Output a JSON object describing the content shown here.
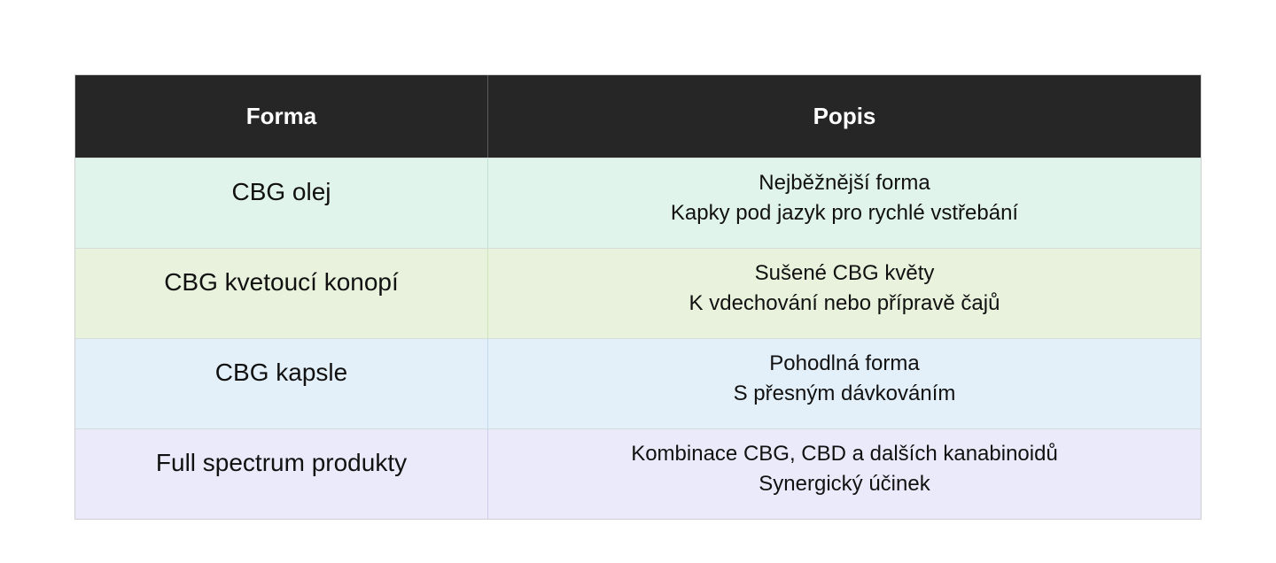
{
  "table": {
    "headers": [
      "Forma",
      "Popis"
    ],
    "rows": [
      {
        "forma": "CBG olej",
        "popis_line1": "Nejběžnější forma",
        "popis_line2": "Kapky pod jazyk pro rychlé vstřebání"
      },
      {
        "forma": "CBG kvetoucí konopí",
        "popis_line1": "Sušené CBG květy",
        "popis_line2": "K vdechování nebo přípravě čajů"
      },
      {
        "forma": "CBG kapsle",
        "popis_line1": "Pohodlná forma",
        "popis_line2": "S přesným dávkováním"
      },
      {
        "forma": "Full spectrum produkty",
        "popis_line1": "Kombinace CBG, CBD a dalších kanabinoidů",
        "popis_line2": "Synergický účinek"
      }
    ],
    "colors": {
      "header_bg": "#262626",
      "row_backgrounds": [
        "#e1f4ec",
        "#e8f2dc",
        "#e3eff9",
        "#ebeafa"
      ]
    }
  }
}
